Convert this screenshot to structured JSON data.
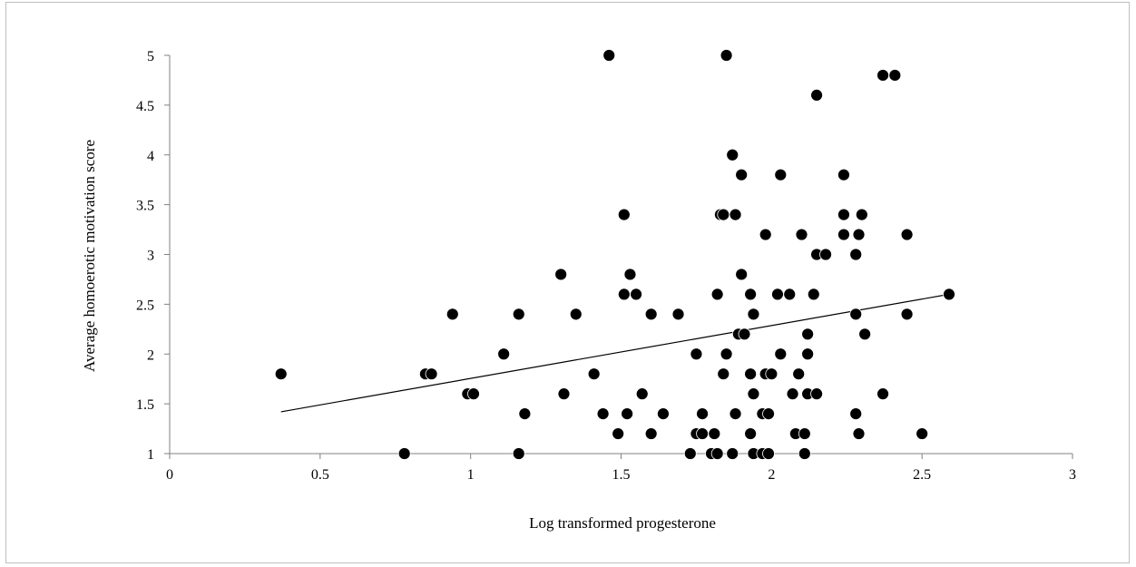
{
  "chart_data": {
    "type": "scatter",
    "xlabel": "Log transformed progesterone",
    "ylabel": "Average homoerotic motivation score",
    "xlim": [
      0,
      3
    ],
    "ylim": [
      1,
      5
    ],
    "x_ticks": [
      "0",
      "0.5",
      "1",
      "1.5",
      "2",
      "2.5",
      "3"
    ],
    "y_ticks": [
      "1",
      "1.5",
      "2",
      "2.5",
      "3",
      "3.5",
      "4",
      "4.5",
      "5"
    ],
    "grid": false,
    "legend": "none",
    "marker_color": "#000000",
    "points": [
      {
        "x": 0.37,
        "y": 1.8
      },
      {
        "x": 0.78,
        "y": 1.0
      },
      {
        "x": 0.85,
        "y": 1.8
      },
      {
        "x": 0.87,
        "y": 1.8
      },
      {
        "x": 0.94,
        "y": 2.4
      },
      {
        "x": 0.99,
        "y": 1.6
      },
      {
        "x": 1.01,
        "y": 1.6
      },
      {
        "x": 1.11,
        "y": 2.0
      },
      {
        "x": 1.16,
        "y": 2.4
      },
      {
        "x": 1.16,
        "y": 1.0
      },
      {
        "x": 1.18,
        "y": 1.4
      },
      {
        "x": 1.3,
        "y": 2.8
      },
      {
        "x": 1.31,
        "y": 1.6
      },
      {
        "x": 1.35,
        "y": 2.4
      },
      {
        "x": 1.41,
        "y": 1.8
      },
      {
        "x": 1.44,
        "y": 1.4
      },
      {
        "x": 1.46,
        "y": 5.0
      },
      {
        "x": 1.49,
        "y": 1.2
      },
      {
        "x": 1.51,
        "y": 3.4
      },
      {
        "x": 1.51,
        "y": 2.6
      },
      {
        "x": 1.52,
        "y": 1.4
      },
      {
        "x": 1.53,
        "y": 2.8
      },
      {
        "x": 1.55,
        "y": 2.6
      },
      {
        "x": 1.57,
        "y": 1.6
      },
      {
        "x": 1.6,
        "y": 2.4
      },
      {
        "x": 1.6,
        "y": 1.2
      },
      {
        "x": 1.64,
        "y": 1.4
      },
      {
        "x": 1.69,
        "y": 2.4
      },
      {
        "x": 1.73,
        "y": 1.0
      },
      {
        "x": 1.75,
        "y": 2.0
      },
      {
        "x": 1.75,
        "y": 1.2
      },
      {
        "x": 1.77,
        "y": 1.4
      },
      {
        "x": 1.77,
        "y": 1.2
      },
      {
        "x": 1.8,
        "y": 1.0
      },
      {
        "x": 1.81,
        "y": 1.2
      },
      {
        "x": 1.82,
        "y": 2.6
      },
      {
        "x": 1.82,
        "y": 1.0
      },
      {
        "x": 1.83,
        "y": 3.4
      },
      {
        "x": 1.84,
        "y": 3.4
      },
      {
        "x": 1.84,
        "y": 1.8
      },
      {
        "x": 1.85,
        "y": 5.0
      },
      {
        "x": 1.85,
        "y": 2.0
      },
      {
        "x": 1.87,
        "y": 4.0
      },
      {
        "x": 1.87,
        "y": 1.0
      },
      {
        "x": 1.88,
        "y": 3.4
      },
      {
        "x": 1.88,
        "y": 1.4
      },
      {
        "x": 1.89,
        "y": 2.2
      },
      {
        "x": 1.9,
        "y": 3.8
      },
      {
        "x": 1.9,
        "y": 2.8
      },
      {
        "x": 1.91,
        "y": 2.2
      },
      {
        "x": 1.93,
        "y": 2.6
      },
      {
        "x": 1.93,
        "y": 1.8
      },
      {
        "x": 1.93,
        "y": 1.2
      },
      {
        "x": 1.94,
        "y": 2.4
      },
      {
        "x": 1.94,
        "y": 1.6
      },
      {
        "x": 1.94,
        "y": 1.0
      },
      {
        "x": 1.97,
        "y": 1.4
      },
      {
        "x": 1.97,
        "y": 1.0
      },
      {
        "x": 1.98,
        "y": 3.2
      },
      {
        "x": 1.98,
        "y": 1.8
      },
      {
        "x": 1.99,
        "y": 1.4
      },
      {
        "x": 1.99,
        "y": 1.0
      },
      {
        "x": 2.0,
        "y": 1.8
      },
      {
        "x": 2.02,
        "y": 2.6
      },
      {
        "x": 2.03,
        "y": 3.8
      },
      {
        "x": 2.03,
        "y": 2.0
      },
      {
        "x": 2.06,
        "y": 2.6
      },
      {
        "x": 2.07,
        "y": 1.6
      },
      {
        "x": 2.08,
        "y": 1.2
      },
      {
        "x": 2.09,
        "y": 1.8
      },
      {
        "x": 2.1,
        "y": 3.2
      },
      {
        "x": 2.11,
        "y": 1.2
      },
      {
        "x": 2.11,
        "y": 1.0
      },
      {
        "x": 2.12,
        "y": 2.2
      },
      {
        "x": 2.12,
        "y": 2.0
      },
      {
        "x": 2.12,
        "y": 1.6
      },
      {
        "x": 2.14,
        "y": 2.6
      },
      {
        "x": 2.15,
        "y": 4.6
      },
      {
        "x": 2.15,
        "y": 3.0
      },
      {
        "x": 2.15,
        "y": 1.6
      },
      {
        "x": 2.18,
        "y": 3.0
      },
      {
        "x": 2.24,
        "y": 3.8
      },
      {
        "x": 2.24,
        "y": 3.4
      },
      {
        "x": 2.24,
        "y": 3.2
      },
      {
        "x": 2.28,
        "y": 3.0
      },
      {
        "x": 2.28,
        "y": 2.4
      },
      {
        "x": 2.28,
        "y": 1.4
      },
      {
        "x": 2.29,
        "y": 3.2
      },
      {
        "x": 2.29,
        "y": 1.2
      },
      {
        "x": 2.3,
        "y": 3.4
      },
      {
        "x": 2.31,
        "y": 2.2
      },
      {
        "x": 2.37,
        "y": 4.8
      },
      {
        "x": 2.37,
        "y": 1.6
      },
      {
        "x": 2.41,
        "y": 4.8
      },
      {
        "x": 2.45,
        "y": 3.2
      },
      {
        "x": 2.45,
        "y": 2.4
      },
      {
        "x": 2.5,
        "y": 1.2
      },
      {
        "x": 2.59,
        "y": 2.6
      }
    ],
    "trendline": {
      "x": [
        0.37,
        2.59
      ],
      "y": [
        1.42,
        2.6
      ]
    }
  }
}
